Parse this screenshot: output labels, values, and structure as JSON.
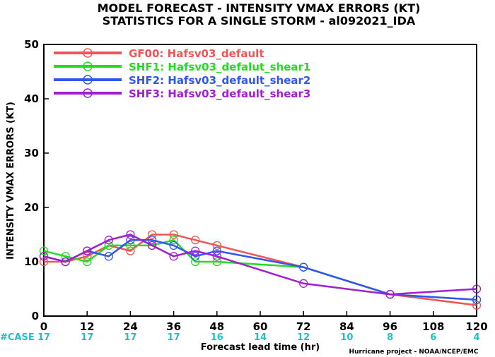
{
  "title_line1": "MODEL FORECAST - INTENSITY VMAX ERRORS (KT)",
  "title_line2": "STATISTICS FOR A SINGLE STORM - al092021_IDA",
  "credit": "Hurricane project - NOAA/NCEP/EMC",
  "case_label": "#CASE",
  "case_counts": [
    "17",
    "17",
    "17",
    "17",
    "16",
    "14",
    "12",
    "10",
    "8",
    "6",
    "4"
  ],
  "chart_data": {
    "type": "line",
    "title": "MODEL FORECAST - INTENSITY VMAX ERRORS (KT)",
    "subtitle": "STATISTICS FOR A SINGLE STORM - al092021_IDA",
    "xlabel": "Forecast lead time (hr)",
    "ylabel": "INTENSITY VMAX ERRORS (KT)",
    "xlim": [
      0,
      120
    ],
    "ylim": [
      0,
      50
    ],
    "xticks": [
      "0",
      "12",
      "24",
      "36",
      "48",
      "60",
      "72",
      "84",
      "96",
      "108",
      "120"
    ],
    "yticks": [
      "0",
      "10",
      "20",
      "30",
      "40",
      "50"
    ],
    "grid": false,
    "legend_position": "top-left",
    "series": [
      {
        "name": "GF00: Hafsv03_default",
        "color": "#f25454",
        "x": [
          0,
          6,
          12,
          18,
          24,
          30,
          36,
          42,
          48,
          72,
          96,
          120
        ],
        "y": [
          10,
          10,
          11,
          13,
          12,
          15,
          15,
          14,
          13,
          9,
          4,
          2
        ]
      },
      {
        "name": "SHF1: Hafsv03_defalut_shear1",
        "color": "#22dd22",
        "x": [
          0,
          6,
          12,
          18,
          24,
          30,
          36,
          42,
          48,
          72,
          96,
          120
        ],
        "y": [
          12,
          11,
          10,
          13,
          13,
          13,
          14,
          10,
          10,
          9,
          4,
          3
        ]
      },
      {
        "name": "SHF2: Hafsv03_default_shear2",
        "color": "#3355ee",
        "x": [
          0,
          6,
          12,
          18,
          24,
          30,
          36,
          42,
          48,
          72,
          96,
          120
        ],
        "y": [
          11,
          10,
          12,
          11,
          14,
          14,
          13,
          11,
          12,
          9,
          4,
          3
        ]
      },
      {
        "name": "SHF3: Hafsv03_default_shear3",
        "color": "#a020d0",
        "x": [
          0,
          6,
          12,
          18,
          24,
          30,
          36,
          42,
          48,
          72,
          96,
          120
        ],
        "y": [
          11,
          10,
          12,
          14,
          15,
          13,
          11,
          12,
          11,
          6,
          4,
          5
        ]
      }
    ]
  }
}
